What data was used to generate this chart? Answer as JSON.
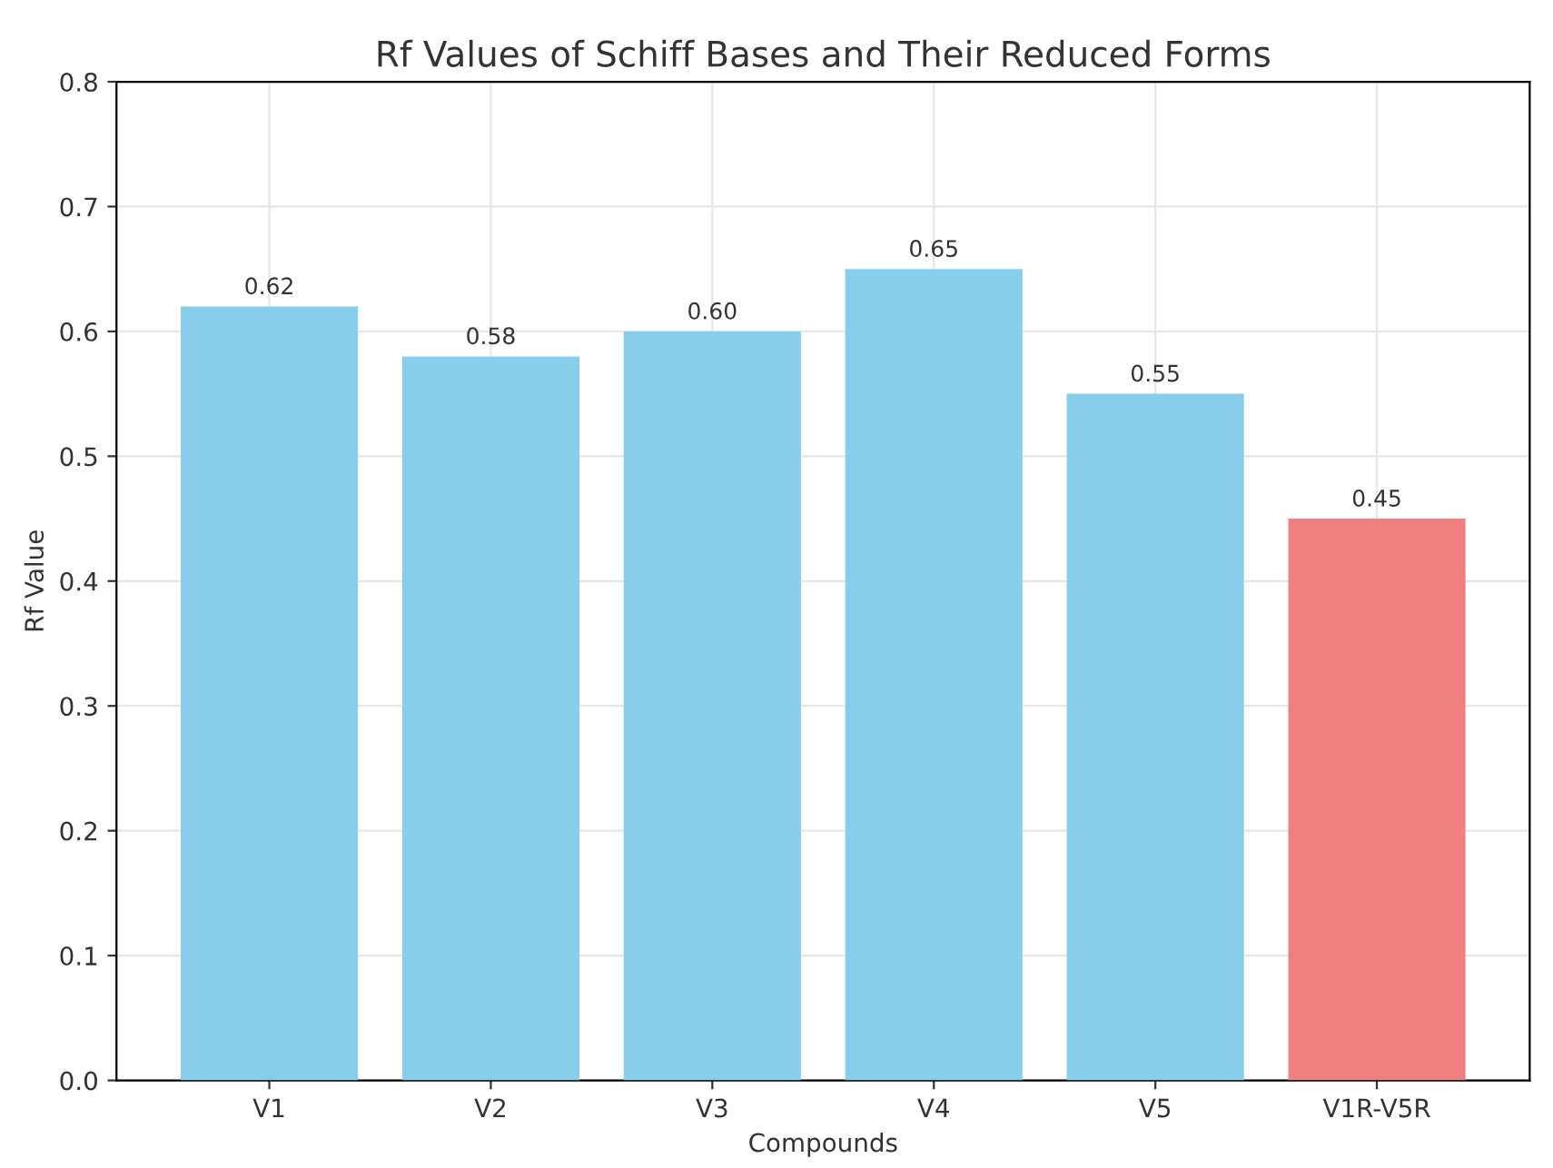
{
  "chart_data": {
    "type": "bar",
    "title": "Rf Values of Schiff Bases and Their Reduced Forms",
    "xlabel": "Compounds",
    "ylabel": "Rf Value",
    "categories": [
      "V1",
      "V2",
      "V3",
      "V4",
      "V5",
      "V1R-V5R"
    ],
    "values": [
      0.62,
      0.58,
      0.6,
      0.65,
      0.55,
      0.45
    ],
    "value_labels": [
      "0.62",
      "0.58",
      "0.60",
      "0.65",
      "0.55",
      "0.45"
    ],
    "colors": [
      "#87ceeb",
      "#87ceeb",
      "#87ceeb",
      "#87ceeb",
      "#87ceeb",
      "#f08080"
    ],
    "ylim": [
      0,
      0.8
    ],
    "yticks": [
      {
        "value": 0,
        "label": "0.0"
      },
      0.1,
      0.2,
      0.3,
      0.4,
      0.5,
      0.6,
      0.7,
      0.8
    ],
    "grid": true
  }
}
